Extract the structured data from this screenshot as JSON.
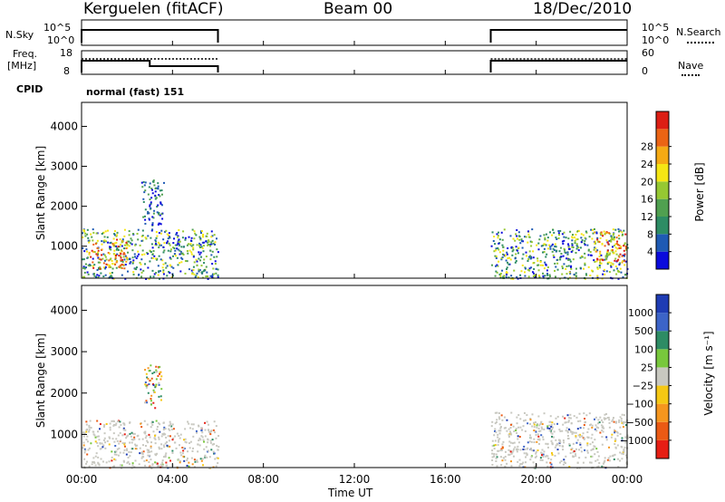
{
  "header": {
    "station": "Kerguelen (fitACF)",
    "beam": "Beam 00",
    "date": "18/Dec/2010"
  },
  "strip_labels": {
    "nsky": "N.Sky",
    "nsky_ticks": [
      "10^5",
      "10^0"
    ],
    "nsearch": "N.Search",
    "nsearch_ticks": [
      "10^5",
      "10^0"
    ],
    "freq": "Freq.",
    "freq_unit": "[MHz]",
    "freq_ticks": [
      "18",
      "8"
    ],
    "nave": "Nave",
    "nave_ticks": [
      "60",
      "0"
    ],
    "cpid": "CPID",
    "cpid_value": "normal (fast) 151"
  },
  "chart_data": [
    {
      "type": "heatmap",
      "panel": "power",
      "ylabel": "Slant Range [km]",
      "ylim": [
        200,
        4600
      ],
      "yticks": [
        "1000",
        "2000",
        "3000",
        "4000"
      ],
      "xlim_hours": [
        0,
        24
      ],
      "colorbar": {
        "label": "Power [dB]",
        "ticks": [
          "4",
          "8",
          "12",
          "16",
          "20",
          "24",
          "28"
        ],
        "colors": [
          "#0a0adc",
          "#1e5ab4",
          "#2d8c64",
          "#50a050",
          "#96c832",
          "#f5e614",
          "#f5aa14",
          "#eb6414",
          "#dc1e14"
        ]
      },
      "regions": [
        {
          "t": [
            0.0,
            6.0
          ],
          "range_km": [
            200,
            1450
          ],
          "level": "low-to-high"
        },
        {
          "t": [
            0.3,
            2.0
          ],
          "range_km": [
            450,
            1200
          ],
          "level": "high"
        },
        {
          "t": [
            2.6,
            3.6
          ],
          "range_km": [
            1500,
            2700
          ],
          "level": "medium"
        },
        {
          "t": [
            18.0,
            24.0
          ],
          "range_km": [
            200,
            1450
          ],
          "level": "low-to-high"
        },
        {
          "t": [
            22.5,
            24.0
          ],
          "range_km": [
            600,
            1400
          ],
          "level": "high"
        }
      ]
    },
    {
      "type": "heatmap",
      "panel": "velocity",
      "ylabel": "Slant Range [km]",
      "ylim": [
        200,
        4600
      ],
      "yticks": [
        "1000",
        "2000",
        "3000",
        "4000"
      ],
      "xlim_hours": [
        0,
        24
      ],
      "colorbar": {
        "label": "Velocity [m s⁻¹]",
        "ticks": [
          "1000",
          "500",
          "100",
          "25",
          "−25",
          "−100",
          "−500",
          "−1000"
        ],
        "colors": [
          "#1e3cb4",
          "#3c64c8",
          "#2d8c64",
          "#78c83c",
          "#c8c8c0",
          "#f5c814",
          "#f5961e",
          "#eb5a14",
          "#e61e14"
        ]
      },
      "regions": [
        {
          "t": [
            0.0,
            6.0
          ],
          "range_km": [
            200,
            1350
          ],
          "level": "ground-scatter"
        },
        {
          "t": [
            2.7,
            3.5
          ],
          "range_km": [
            1600,
            2700
          ],
          "level": "mixed"
        },
        {
          "t": [
            18.0,
            24.0
          ],
          "range_km": [
            200,
            1550
          ],
          "level": "ground-scatter"
        }
      ]
    }
  ],
  "xaxis": {
    "ticks": [
      "00:00",
      "04:00",
      "08:00",
      "12:00",
      "16:00",
      "20:00",
      "00:00"
    ],
    "label": "Time UT"
  }
}
